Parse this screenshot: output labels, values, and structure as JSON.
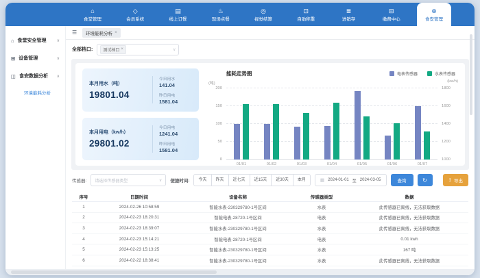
{
  "topnav": {
    "items": [
      {
        "label": "食堂管理",
        "icon": "canteen-mgmt-icon",
        "active": false
      },
      {
        "label": "会员系统",
        "icon": "member-system-icon",
        "active": false
      },
      {
        "label": "线上订餐",
        "icon": "online-order-icon",
        "active": false
      },
      {
        "label": "现场点餐",
        "icon": "dine-in-order-icon",
        "active": false
      },
      {
        "label": "视觉结算",
        "icon": "vision-checkout-icon",
        "active": false
      },
      {
        "label": "自助称重",
        "icon": "self-weigh-icon",
        "active": false
      },
      {
        "label": "进销存",
        "icon": "inventory-icon",
        "active": false
      },
      {
        "label": "缴费中心",
        "icon": "payment-center-icon",
        "active": false
      },
      {
        "label": "食安管理",
        "icon": "food-safety-icon",
        "active": true
      }
    ]
  },
  "sidebar": {
    "items": [
      {
        "label": "食堂安全管理",
        "icon": "canteen-safety-icon",
        "chevron": "down",
        "children": []
      },
      {
        "label": "设备管理",
        "icon": "device-mgmt-icon",
        "chevron": "down",
        "children": []
      },
      {
        "label": "食安数据分析",
        "icon": "data-analysis-icon",
        "chevron": "up",
        "children": [
          {
            "label": "环境能耗分析",
            "active": true
          }
        ]
      }
    ]
  },
  "tabbar": {
    "active_tab": "环境能耗分析"
  },
  "stall_filter": {
    "label": "全部档口:",
    "selected_tag": "测试档口"
  },
  "stats": [
    {
      "title": "本月用水（吨）",
      "value": "19801.04",
      "metrics": [
        {
          "label": "今日用水",
          "value": "141.04"
        },
        {
          "label": "昨日用电",
          "value": "1581.04"
        }
      ]
    },
    {
      "title": "本月用电（kw/h）",
      "value": "29801.02",
      "metrics": [
        {
          "label": "今日用电",
          "value": "1241.04"
        },
        {
          "label": "昨日用电",
          "value": "1581.04"
        }
      ]
    }
  ],
  "chart_data": {
    "type": "bar",
    "title": "能耗走势图",
    "categories": [
      "01/01",
      "01/02",
      "01/03",
      "01/04",
      "01/05",
      "01/06",
      "01/07"
    ],
    "series": [
      {
        "name": "电表传感器",
        "color": "#7585c2",
        "axis": "right",
        "values": [
          1400,
          1400,
          1370,
          1380,
          1770,
          1270,
          1600
        ]
      },
      {
        "name": "水表传感器",
        "color": "#13a983",
        "axis": "left",
        "values": [
          155,
          155,
          131,
          160,
          122,
          102,
          78
        ]
      }
    ],
    "left_axis": {
      "unit": "(吨)",
      "min": 0,
      "max": 200,
      "ticks": [
        0,
        50,
        100,
        150,
        200
      ]
    },
    "right_axis": {
      "unit": "(kw/h)",
      "min": 1000,
      "max": 1800,
      "ticks": [
        1000,
        1200,
        1400,
        1600,
        1800
      ]
    },
    "grid": "horizontal-dashed",
    "legend_position": "top-right"
  },
  "filters": {
    "sensor_label": "传感器:",
    "sensor_placeholder": "请选择传感器类型",
    "time_label": "便捷时间:",
    "quick_buttons": [
      "今天",
      "昨天",
      "近七天",
      "近15天",
      "近30天",
      "本月"
    ],
    "date_start": "2024-01-01",
    "date_separator": "至",
    "date_end": "2024-03-05",
    "search_button": "查询",
    "export_button": "导出"
  },
  "table": {
    "headers": [
      "序号",
      "日期时间",
      "设备名称",
      "传感器类型",
      "数据"
    ],
    "rows": [
      [
        "1",
        "2024-02-26 10:58:59",
        "智能水表-230329780-1号区间",
        "水表",
        "此传感器已离线，无法获取数据"
      ],
      [
        "2",
        "2024-02-23 18:20:31",
        "智能电表-28720-1号区间",
        "电表",
        "此传感器已离线，无法获取数据"
      ],
      [
        "3",
        "2024-02-23 18:39:07",
        "智能水表-230329780-1号区间",
        "水表",
        "此传感器已离线，无法获取数据"
      ],
      [
        "4",
        "2024-02-23 15:14:21",
        "智能电表-28720-1号区间",
        "电表",
        "0.01 kwh"
      ],
      [
        "5",
        "2024-02-23 15:13:25",
        "智能水表-230329780-1号区间",
        "水表",
        "167 吨"
      ],
      [
        "6",
        "2024-02-22 18:38:41",
        "智能水表-230329780-1号区间",
        "水表",
        "此传感器已离线，无法获取数据"
      ]
    ]
  },
  "colors": {
    "nav_blue": "#2e75c5",
    "accent_blue": "#3d87da",
    "export_orange": "#e6a23c",
    "electric_bar": "#7585c2",
    "water_bar": "#13a983"
  }
}
